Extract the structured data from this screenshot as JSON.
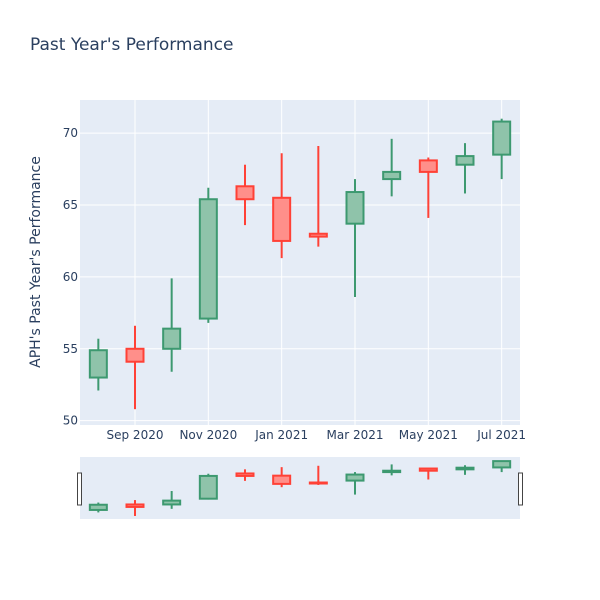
{
  "chart_data": {
    "type": "candlestick",
    "title": "Past Year's Performance",
    "xlabel": "",
    "ylabel": "APH's Past Year's Performance",
    "ylim": [
      49.7,
      72.3
    ],
    "yticks": [
      50,
      55,
      60,
      65,
      70
    ],
    "xticks": [
      "Sep 2020",
      "Nov 2020",
      "Jan 2021",
      "Mar 2021",
      "May 2021",
      "Jul 2021"
    ],
    "grid": true,
    "range_slider": true,
    "colors": {
      "increasing_line": "#3d9970",
      "increasing_fill": "#8fc3aa",
      "decreasing_line": "#ff4136",
      "decreasing_fill": "#ff8f8a",
      "plot_bg": "#e5ecf6",
      "grid": "#ffffff"
    },
    "candles": [
      {
        "open": 53.0,
        "high": 55.7,
        "low": 52.1,
        "close": 54.9
      },
      {
        "open": 55.0,
        "high": 56.6,
        "low": 50.8,
        "close": 54.1
      },
      {
        "open": 55.0,
        "high": 59.9,
        "low": 53.4,
        "close": 56.4
      },
      {
        "open": 57.1,
        "high": 66.2,
        "low": 56.8,
        "close": 65.4
      },
      {
        "open": 66.3,
        "high": 67.8,
        "low": 63.6,
        "close": 65.4
      },
      {
        "open": 65.5,
        "high": 68.6,
        "low": 61.3,
        "close": 62.5
      },
      {
        "open": 63.0,
        "high": 69.1,
        "low": 62.1,
        "close": 62.8
      },
      {
        "open": 63.7,
        "high": 66.8,
        "low": 58.6,
        "close": 65.9
      },
      {
        "open": 66.8,
        "high": 69.6,
        "low": 65.6,
        "close": 67.3
      },
      {
        "open": 68.1,
        "high": 68.3,
        "low": 64.1,
        "close": 67.3
      },
      {
        "open": 67.8,
        "high": 69.3,
        "low": 65.8,
        "close": 68.4
      },
      {
        "open": 68.5,
        "high": 71.0,
        "low": 66.8,
        "close": 70.8
      }
    ]
  }
}
